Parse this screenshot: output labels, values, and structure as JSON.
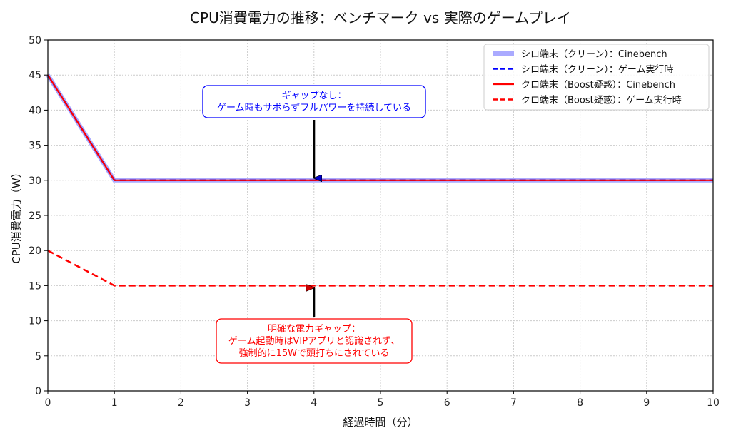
{
  "chart_data": {
    "type": "line",
    "title": "CPU消費電力の推移：ベンチマーク vs 実際のゲームプレイ",
    "xlabel": "経過時間（分）",
    "ylabel": "CPU消費電力（W）",
    "xlim": [
      0,
      10
    ],
    "ylim": [
      0,
      50
    ],
    "xticks": [
      "0",
      "1",
      "2",
      "3",
      "4",
      "5",
      "6",
      "7",
      "8",
      "9",
      "10"
    ],
    "yticks": [
      "0",
      "5",
      "10",
      "15",
      "20",
      "25",
      "30",
      "35",
      "40",
      "45",
      "50"
    ],
    "grid": true,
    "legend_position": "top-right",
    "series": [
      {
        "name": "シロ端末（クリーン）：Cinebench",
        "x": [
          0,
          1,
          10
        ],
        "y": [
          45,
          30,
          30
        ],
        "color": "#aaaaff",
        "style": "solid-thick"
      },
      {
        "name": "シロ端末（クリーン）：ゲーム実行時",
        "x": [
          0,
          1,
          10
        ],
        "y": [
          45,
          30,
          30
        ],
        "color": "#0000ff",
        "style": "dashed"
      },
      {
        "name": "クロ端末（Boost疑惑）：Cinebench",
        "x": [
          0,
          1,
          10
        ],
        "y": [
          45,
          30,
          30
        ],
        "color": "#ff0000",
        "style": "solid"
      },
      {
        "name": "クロ端末（Boost疑惑）：ゲーム実行時",
        "x": [
          0,
          1,
          10
        ],
        "y": [
          20,
          15,
          15
        ],
        "color": "#ff0000",
        "style": "dashed"
      }
    ],
    "annotations": [
      {
        "lines": [
          "ギャップなし：",
          "ゲーム時もサボらずフルパワーを持続している"
        ],
        "x": 4,
        "y": 30,
        "color": "#0000ff",
        "arrow_color": "#0000aa"
      },
      {
        "lines": [
          "明確な電力ギャップ：",
          "ゲーム起動時はVIPアプリと認識されず、",
          "強制的に15Wで頭打ちにされている"
        ],
        "x": 4,
        "y": 15,
        "color": "#ff0000",
        "arrow_color": "#990000"
      }
    ]
  }
}
